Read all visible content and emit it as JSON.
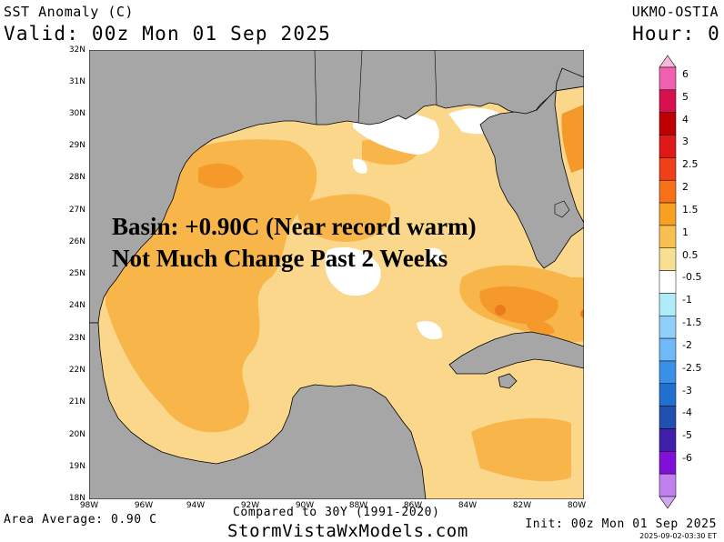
{
  "header": {
    "title": "SST Anomaly (C)",
    "valid": "Valid: 00z Mon 01 Sep 2025",
    "model": "UKMO-OSTIA",
    "hour": "Hour: 0"
  },
  "annotation": {
    "line1": "Basin: +0.90C (Near record warm)",
    "line2": "Not Much Change Past 2 Weeks"
  },
  "axes": {
    "lat_labels": [
      "32N",
      "31N",
      "30N",
      "29N",
      "28N",
      "27N",
      "26N",
      "25N",
      "24N",
      "23N",
      "22N",
      "21N",
      "20N",
      "19N",
      "18N"
    ],
    "lon_labels": [
      "98W",
      "96W",
      "94W",
      "92W",
      "90W",
      "88W",
      "86W",
      "84W",
      "82W",
      "80W"
    ]
  },
  "colorbar": {
    "labels": [
      "6",
      "5",
      "4",
      "3",
      "2.5",
      "2",
      "1.5",
      "1",
      "0.5",
      "-0.5",
      "-1",
      "-1.5",
      "-2",
      "-2.5",
      "-3",
      "-4",
      "-5",
      "-6"
    ],
    "colors": [
      "#f060b0",
      "#d81050",
      "#c00000",
      "#e01818",
      "#f04018",
      "#f87018",
      "#f8a020",
      "#f8c050",
      "#f8e090",
      "#ffffff",
      "#b0ecf8",
      "#90d0f8",
      "#70b8f8",
      "#3890e8",
      "#2070d0",
      "#2050b0",
      "#4020a8",
      "#8010d8",
      "#c080f0"
    ],
    "top_arrow_color": "#f8b8d8",
    "bottom_arrow_color": "#d0a8f0"
  },
  "footer": {
    "area_average": "Area Average: 0.90 C",
    "compared": "Compared to 30Y (1991-2020)",
    "website": "StormVistaWxModels.com",
    "init": "Init: 00z Mon 01 Sep 2025",
    "generated": "2025-09-02-03:30 ET"
  },
  "colors": {
    "land": "#a6a6a6",
    "ocean_base": "#fad78a",
    "warm_1_5": "#f8b64a",
    "warm_2": "#f59a2a",
    "warm_2_5": "#ec7a1c",
    "near_zero": "#ffffff"
  }
}
